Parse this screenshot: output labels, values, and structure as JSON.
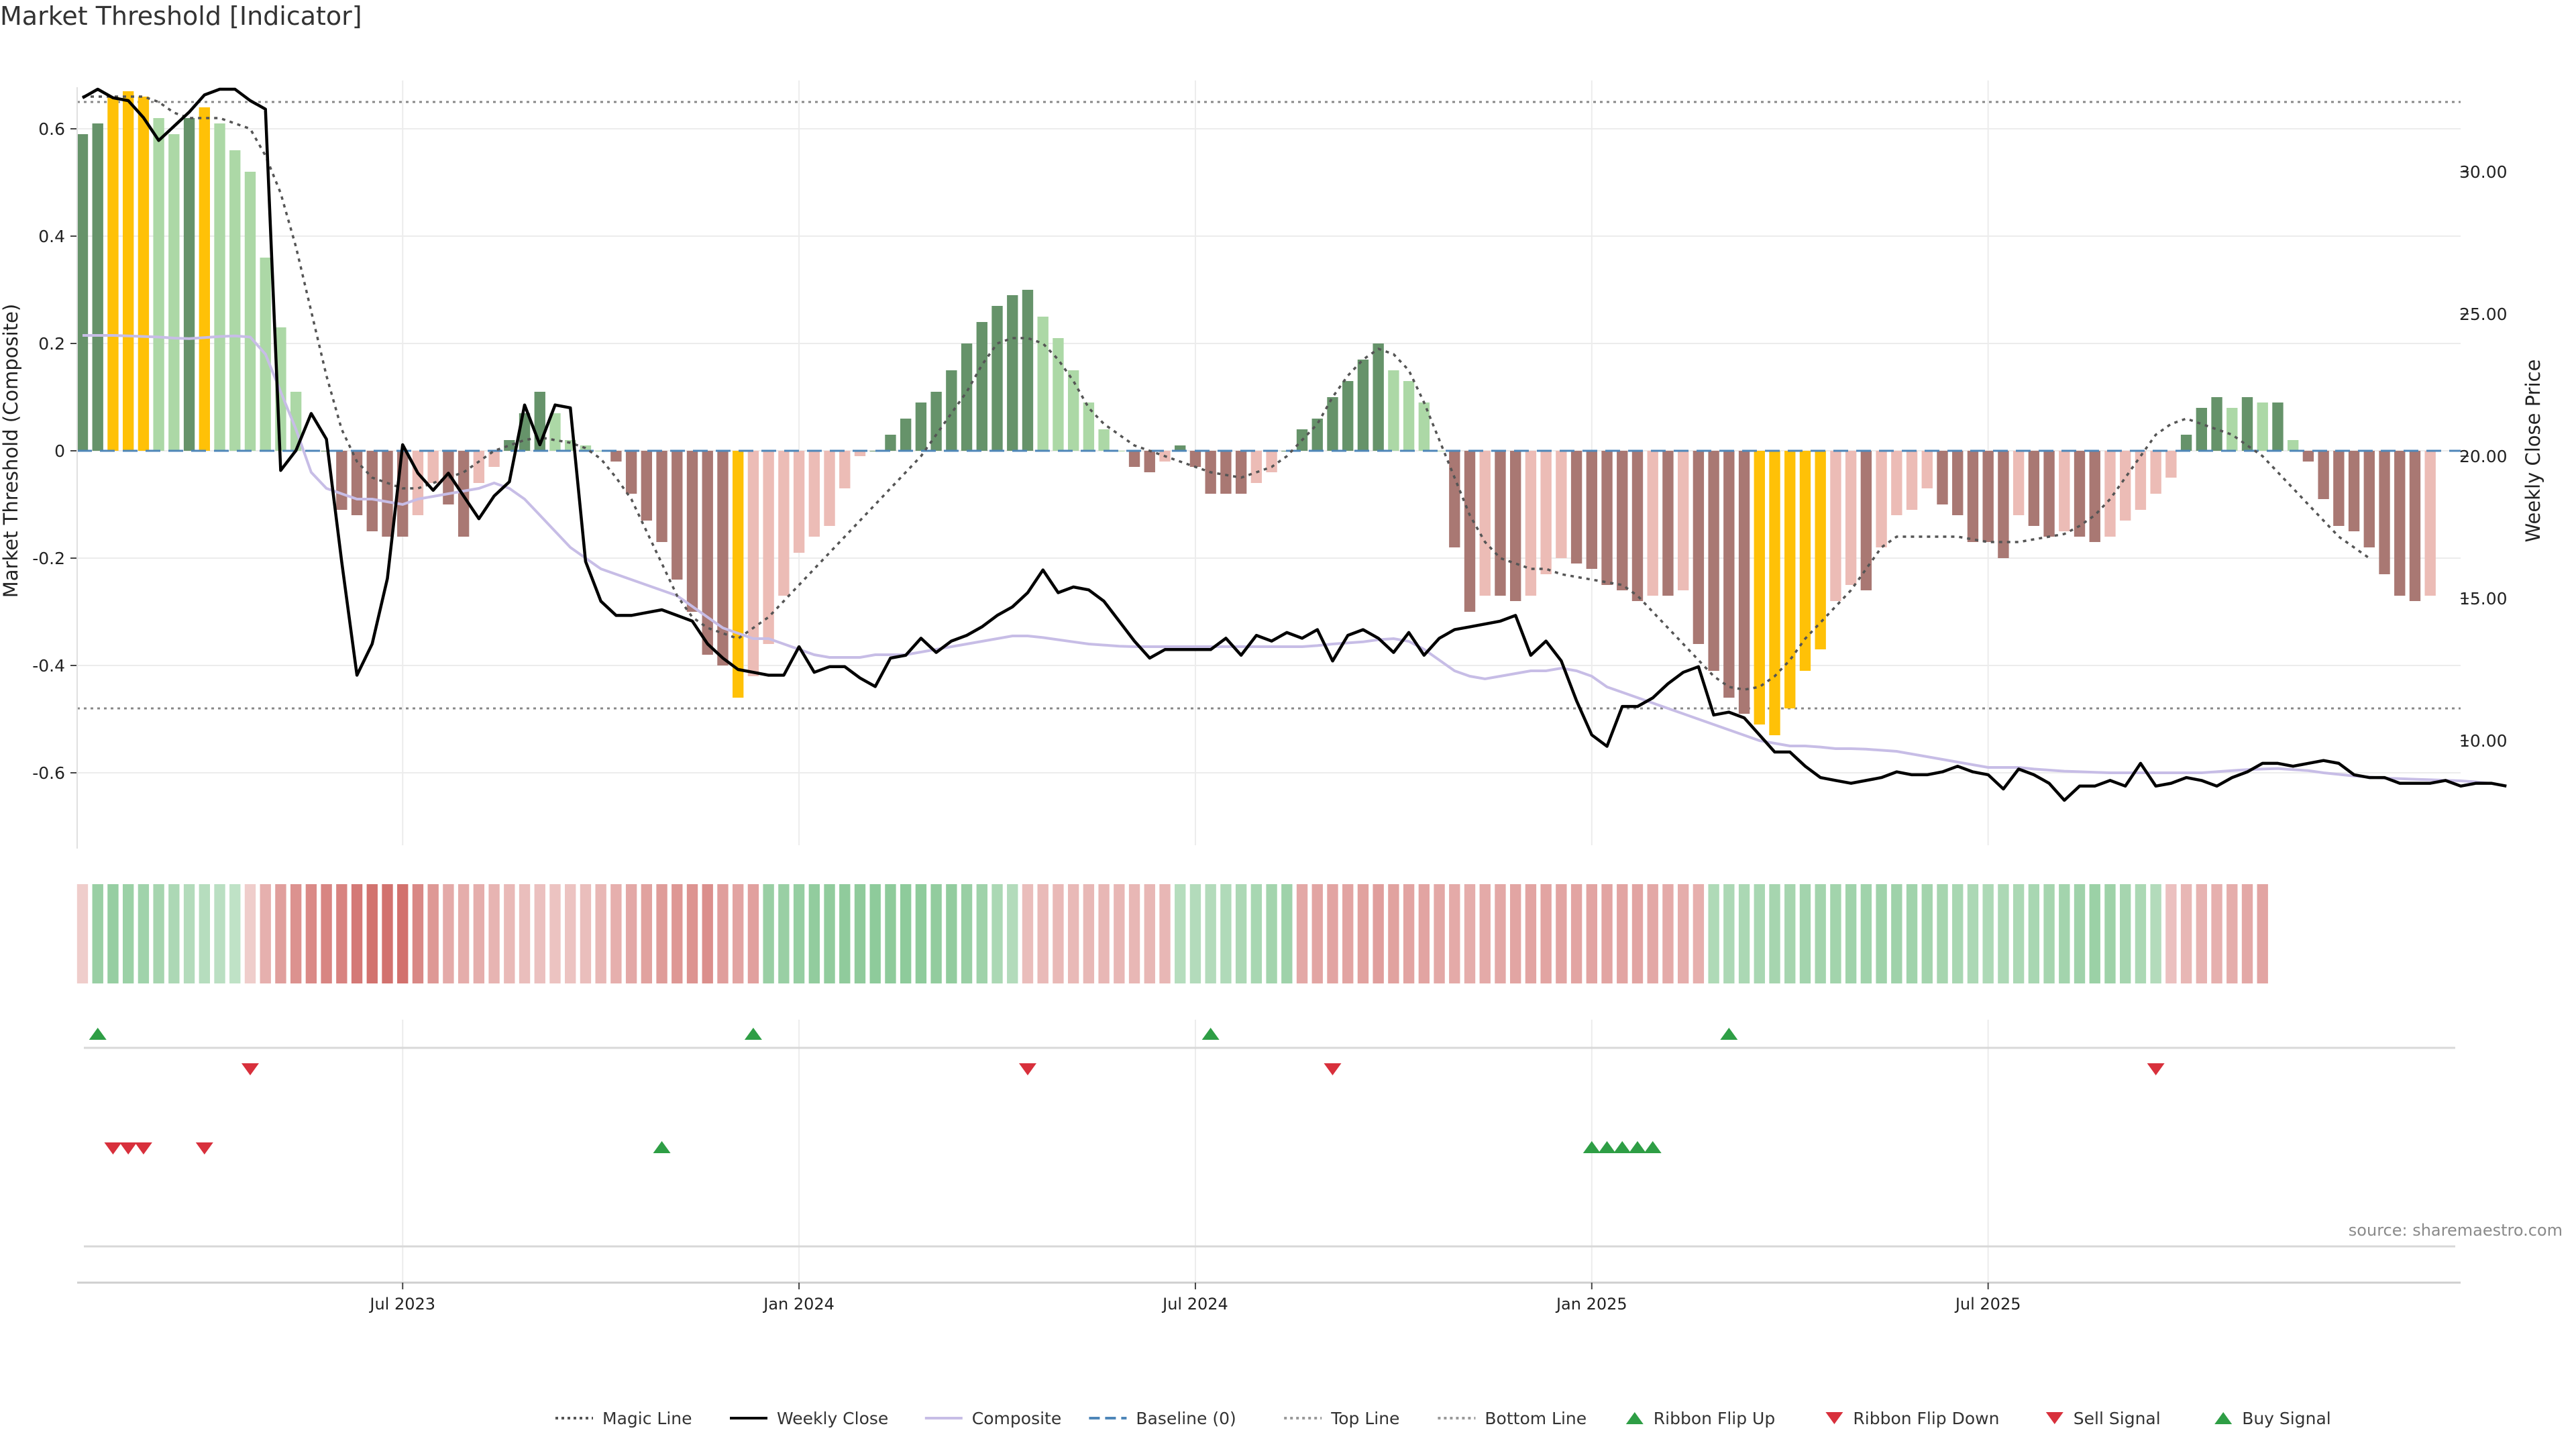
{
  "title": "Market Threshold [Indicator]",
  "source": "source: sharemaestro.com",
  "colors": {
    "bull_strong": "#66936a",
    "bull_light": "#acd8a6",
    "bear_strong": "#a97873",
    "bear_light": "#ecbcb6",
    "extreme": "#ffc107",
    "close_line": "#000000",
    "composite_line": "#c7bde6",
    "magic_line": "#555555",
    "baseline": "#4e86b8",
    "buy": "#2e9e45",
    "sell": "#d8303c"
  },
  "chart_data": {
    "type": "bar",
    "title": "Market Threshold [Indicator]",
    "ylabel": "Market Threshold (Composite)",
    "y2label": "Weekly Close Price",
    "ylim": [
      -0.74,
      0.7
    ],
    "y2lim": [
      6.3,
      33.9
    ],
    "yticks": [
      "0.6",
      "0.4",
      "0.2",
      "0",
      "-0.2",
      "-0.4",
      "-0.6"
    ],
    "y2ticks": [
      "30.00",
      "25.00",
      "20.00",
      "15.00",
      "10.00"
    ],
    "top_line": 0.65,
    "bottom_line": -0.48,
    "xticks": [
      "Jul 2023",
      "Jan 2024",
      "Jul 2024",
      "Jan 2025",
      "Jul 2025"
    ],
    "xtick_weeks": [
      21,
      47,
      73,
      99,
      125
    ],
    "series": {
      "composite_bars": [
        0.59,
        0.61,
        0.66,
        0.67,
        0.66,
        0.62,
        0.59,
        0.62,
        0.64,
        0.61,
        0.56,
        0.52,
        0.36,
        0.23,
        0.11,
        0.0,
        0.0,
        -0.11,
        -0.12,
        -0.15,
        -0.16,
        -0.16,
        -0.12,
        -0.06,
        -0.1,
        -0.16,
        -0.06,
        -0.03,
        0.02,
        0.07,
        0.11,
        0.07,
        0.02,
        0.01,
        0.0,
        -0.02,
        -0.08,
        -0.13,
        -0.17,
        -0.24,
        -0.3,
        -0.38,
        -0.4,
        -0.46,
        -0.42,
        -0.36,
        -0.27,
        -0.19,
        -0.16,
        -0.14,
        -0.07,
        -0.01,
        0.0,
        0.03,
        0.06,
        0.09,
        0.11,
        0.15,
        0.2,
        0.24,
        0.27,
        0.29,
        0.3,
        0.25,
        0.21,
        0.15,
        0.09,
        0.04,
        0.0,
        -0.03,
        -0.04,
        -0.02,
        0.01,
        -0.03,
        -0.08,
        -0.08,
        -0.08,
        -0.06,
        -0.04,
        0.0,
        0.04,
        0.06,
        0.1,
        0.13,
        0.17,
        0.2,
        0.15,
        0.13,
        0.09,
        0.0,
        -0.18,
        -0.3,
        -0.27,
        -0.27,
        -0.28,
        -0.27,
        -0.23,
        -0.2,
        -0.21,
        -0.22,
        -0.25,
        -0.26,
        -0.28,
        -0.27,
        -0.27,
        -0.26,
        -0.36,
        -0.41,
        -0.46,
        -0.49,
        -0.51,
        -0.53,
        -0.48,
        -0.41,
        -0.37,
        -0.28,
        -0.25,
        -0.26,
        -0.18,
        -0.12,
        -0.11,
        -0.07,
        -0.1,
        -0.12,
        -0.17,
        -0.17,
        -0.2,
        -0.12,
        -0.14,
        -0.16,
        -0.15,
        -0.16,
        -0.17,
        -0.16,
        -0.13,
        -0.11,
        -0.08,
        -0.05,
        0.03,
        0.08,
        0.1,
        0.08,
        0.1,
        0.09,
        0.09,
        0.02,
        -0.02,
        -0.09,
        -0.14,
        -0.15,
        -0.18,
        -0.23,
        -0.27,
        -0.28,
        -0.27
      ],
      "extreme_weeks": [
        2,
        3,
        4,
        8,
        43,
        110,
        111,
        112,
        113,
        114
      ],
      "weekly_close": [
        32.6,
        32.9,
        32.6,
        32.5,
        31.9,
        31.1,
        31.6,
        32.1,
        32.7,
        32.9,
        32.9,
        32.5,
        32.2,
        19.5,
        20.2,
        21.5,
        20.6,
        16.3,
        12.3,
        13.4,
        15.7,
        20.4,
        19.4,
        18.8,
        19.4,
        18.6,
        17.8,
        18.6,
        19.1,
        21.8,
        20.4,
        21.8,
        21.7,
        16.3,
        14.9,
        14.4,
        14.4,
        14.5,
        14.6,
        14.4,
        14.2,
        13.4,
        12.9,
        12.5,
        12.4,
        12.3,
        12.3,
        13.3,
        12.4,
        12.6,
        12.6,
        12.2,
        11.9,
        12.9,
        13.0,
        13.6,
        13.1,
        13.5,
        13.7,
        14.0,
        14.4,
        14.7,
        15.2,
        16.0,
        15.2,
        15.4,
        15.3,
        14.9,
        14.2,
        13.5,
        12.9,
        13.2,
        13.2,
        13.2,
        13.2,
        13.6,
        13.0,
        13.7,
        13.5,
        13.8,
        13.6,
        13.9,
        12.8,
        13.7,
        13.9,
        13.6,
        13.1,
        13.8,
        13.0,
        13.6,
        13.9,
        14.0,
        14.1,
        14.2,
        14.4,
        13.0,
        13.5,
        12.8,
        11.4,
        10.2,
        9.8,
        11.2,
        11.2,
        11.5,
        12.0,
        12.4,
        12.6,
        10.9,
        11.0,
        10.8,
        10.2,
        9.6,
        9.6,
        9.1,
        8.7,
        8.6,
        8.5,
        8.6,
        8.7,
        8.9,
        8.8,
        8.8,
        8.9,
        9.1,
        8.9,
        8.8,
        8.3,
        9.0,
        8.8,
        8.5,
        7.9,
        8.4,
        8.4,
        8.6,
        8.4,
        9.2,
        8.4,
        8.5,
        8.7,
        8.6,
        8.4,
        8.7,
        8.9,
        9.2,
        9.2,
        9.1,
        9.2,
        9.3,
        9.2,
        8.8,
        8.7,
        8.7,
        8.5,
        8.5,
        8.5,
        8.6,
        8.4,
        8.5,
        8.5,
        8.4
      ],
      "composite_line": [
        0.215,
        0.215,
        0.215,
        0.214,
        0.213,
        0.212,
        0.21,
        0.209,
        0.211,
        0.213,
        0.214,
        0.212,
        0.18,
        0.11,
        0.04,
        -0.04,
        -0.07,
        -0.08,
        -0.09,
        -0.09,
        -0.095,
        -0.1,
        -0.09,
        -0.085,
        -0.08,
        -0.075,
        -0.07,
        -0.06,
        -0.07,
        -0.09,
        -0.12,
        -0.15,
        -0.18,
        -0.2,
        -0.22,
        -0.23,
        -0.24,
        -0.25,
        -0.26,
        -0.27,
        -0.29,
        -0.31,
        -0.33,
        -0.34,
        -0.35,
        -0.35,
        -0.36,
        -0.37,
        -0.38,
        -0.385,
        -0.385,
        -0.385,
        -0.38,
        -0.38,
        -0.38,
        -0.375,
        -0.37,
        -0.365,
        -0.36,
        -0.355,
        -0.35,
        -0.345,
        -0.345,
        -0.348,
        -0.352,
        -0.356,
        -0.36,
        -0.362,
        -0.364,
        -0.365,
        -0.365,
        -0.365,
        -0.365,
        -0.365,
        -0.365,
        -0.365,
        -0.365,
        -0.365,
        -0.365,
        -0.365,
        -0.365,
        -0.363,
        -0.36,
        -0.358,
        -0.356,
        -0.352,
        -0.35,
        -0.355,
        -0.37,
        -0.39,
        -0.41,
        -0.42,
        -0.425,
        -0.42,
        -0.415,
        -0.41,
        -0.41,
        -0.405,
        -0.41,
        -0.42,
        -0.44,
        -0.45,
        -0.46,
        -0.47,
        -0.48,
        -0.49,
        -0.5,
        -0.51,
        -0.52,
        -0.53,
        -0.54,
        -0.545,
        -0.55,
        -0.55,
        -0.552,
        -0.555,
        -0.555,
        -0.556,
        -0.558,
        -0.56,
        -0.565,
        -0.57,
        -0.575,
        -0.58,
        -0.585,
        -0.59,
        -0.59,
        -0.59,
        -0.593,
        -0.595,
        -0.597,
        -0.598,
        -0.599,
        -0.6,
        -0.6,
        -0.6,
        -0.6,
        -0.6,
        -0.6,
        -0.6,
        -0.598,
        -0.596,
        -0.594,
        -0.593,
        -0.592,
        -0.594,
        -0.596,
        -0.6,
        -0.603,
        -0.606,
        -0.608,
        -0.61,
        -0.611,
        -0.612,
        -0.613,
        -0.614,
        -0.615,
        -0.617,
        -0.62
      ],
      "magic_line": [
        0.66,
        0.66,
        0.66,
        0.66,
        0.66,
        0.65,
        0.63,
        0.62,
        0.62,
        0.62,
        0.61,
        0.6,
        0.55,
        0.48,
        0.38,
        0.26,
        0.14,
        0.04,
        -0.02,
        -0.05,
        -0.06,
        -0.07,
        -0.07,
        -0.06,
        -0.05,
        -0.04,
        -0.02,
        0.0,
        0.01,
        0.02,
        0.025,
        0.02,
        0.015,
        0.005,
        -0.015,
        -0.05,
        -0.09,
        -0.15,
        -0.21,
        -0.27,
        -0.31,
        -0.33,
        -0.34,
        -0.35,
        -0.33,
        -0.31,
        -0.28,
        -0.25,
        -0.22,
        -0.19,
        -0.16,
        -0.13,
        -0.1,
        -0.07,
        -0.04,
        -0.01,
        0.03,
        0.07,
        0.11,
        0.16,
        0.2,
        0.21,
        0.21,
        0.2,
        0.17,
        0.13,
        0.08,
        0.05,
        0.03,
        0.01,
        0.0,
        -0.01,
        -0.02,
        -0.03,
        -0.04,
        -0.045,
        -0.05,
        -0.04,
        -0.03,
        -0.01,
        0.02,
        0.05,
        0.1,
        0.14,
        0.17,
        0.19,
        0.18,
        0.15,
        0.09,
        0.02,
        -0.05,
        -0.12,
        -0.17,
        -0.2,
        -0.21,
        -0.22,
        -0.22,
        -0.23,
        -0.235,
        -0.24,
        -0.245,
        -0.25,
        -0.27,
        -0.3,
        -0.33,
        -0.36,
        -0.39,
        -0.42,
        -0.44,
        -0.445,
        -0.44,
        -0.42,
        -0.39,
        -0.35,
        -0.32,
        -0.29,
        -0.26,
        -0.22,
        -0.18,
        -0.16,
        -0.16,
        -0.16,
        -0.16,
        -0.16,
        -0.165,
        -0.17,
        -0.17,
        -0.17,
        -0.165,
        -0.16,
        -0.155,
        -0.14,
        -0.12,
        -0.09,
        -0.05,
        -0.01,
        0.03,
        0.05,
        0.06,
        0.05,
        0.04,
        0.03,
        0.01,
        -0.01,
        -0.04,
        -0.07,
        -0.1,
        -0.13,
        -0.16,
        -0.18,
        -0.2
      ],
      "ribbon_flip_up_weeks": [
        1,
        44,
        74,
        108
      ],
      "ribbon_flip_down_weeks": [
        11,
        62,
        82,
        136
      ],
      "sell_signal_weeks": [
        2,
        3,
        4,
        8
      ],
      "buy_signal_weeks": [
        38,
        99,
        100,
        101,
        102,
        103
      ],
      "ribbon_strength": [
        -0.12,
        0.5,
        0.52,
        0.48,
        0.44,
        0.4,
        0.35,
        0.3,
        0.27,
        0.24,
        0.2,
        -0.12,
        -0.35,
        -0.5,
        -0.6,
        -0.66,
        -0.7,
        -0.72,
        -0.8,
        -0.85,
        -0.86,
        -0.87,
        -0.68,
        -0.55,
        -0.4,
        -0.38,
        -0.37,
        -0.32,
        -0.28,
        -0.24,
        -0.22,
        -0.2,
        -0.2,
        -0.24,
        -0.3,
        -0.36,
        -0.42,
        -0.47,
        -0.52,
        -0.56,
        -0.58,
        -0.62,
        -0.5,
        -0.45,
        -0.48,
        0.5,
        0.5,
        0.52,
        0.55,
        0.56,
        0.57,
        0.57,
        0.58,
        0.58,
        0.58,
        0.58,
        0.55,
        0.55,
        0.5,
        0.45,
        0.36,
        0.3,
        -0.25,
        -0.27,
        -0.28,
        -0.28,
        -0.29,
        -0.3,
        -0.3,
        -0.3,
        -0.3,
        -0.3,
        0.28,
        0.3,
        0.3,
        0.32,
        0.35,
        0.38,
        0.42,
        0.45,
        -0.42,
        -0.44,
        -0.45,
        -0.45,
        -0.47,
        -0.5,
        -0.47,
        -0.45,
        -0.45,
        -0.42,
        -0.4,
        -0.38,
        -0.4,
        -0.42,
        -0.44,
        -0.45,
        -0.45,
        -0.45,
        -0.45,
        -0.45,
        -0.45,
        -0.45,
        -0.45,
        -0.42,
        -0.4,
        -0.38,
        -0.36,
        0.33,
        0.35,
        0.36,
        0.38,
        0.4,
        0.4,
        0.42,
        0.42,
        0.43,
        0.44,
        0.44,
        0.45,
        0.45,
        0.44,
        0.42,
        0.4,
        0.38,
        0.35,
        0.34,
        0.35,
        0.36,
        0.38,
        0.4,
        0.42,
        0.45,
        0.48,
        0.46,
        0.4,
        0.36,
        0.3,
        -0.22,
        -0.3,
        -0.33,
        -0.35,
        -0.38,
        -0.42,
        -0.45
      ]
    }
  },
  "legend": [
    {
      "label": "Magic Line",
      "kind": "dotted",
      "color": "#555555"
    },
    {
      "label": "Weekly Close",
      "kind": "solid",
      "color": "#000000"
    },
    {
      "label": "Composite",
      "kind": "solid",
      "color": "#c7bde6"
    },
    {
      "label": "Baseline (0)",
      "kind": "dashed",
      "color": "#4e86b8"
    },
    {
      "label": "Top Line",
      "kind": "dotted",
      "color": "#999999"
    },
    {
      "label": "Bottom Line",
      "kind": "dotted",
      "color": "#999999"
    },
    {
      "label": "Ribbon Flip Up",
      "kind": "up",
      "color": "#2e9e45"
    },
    {
      "label": "Ribbon Flip Down",
      "kind": "down",
      "color": "#d8303c"
    },
    {
      "label": "Sell Signal",
      "kind": "down",
      "color": "#d8303c"
    },
    {
      "label": "Buy Signal",
      "kind": "up",
      "color": "#2e9e45"
    }
  ]
}
